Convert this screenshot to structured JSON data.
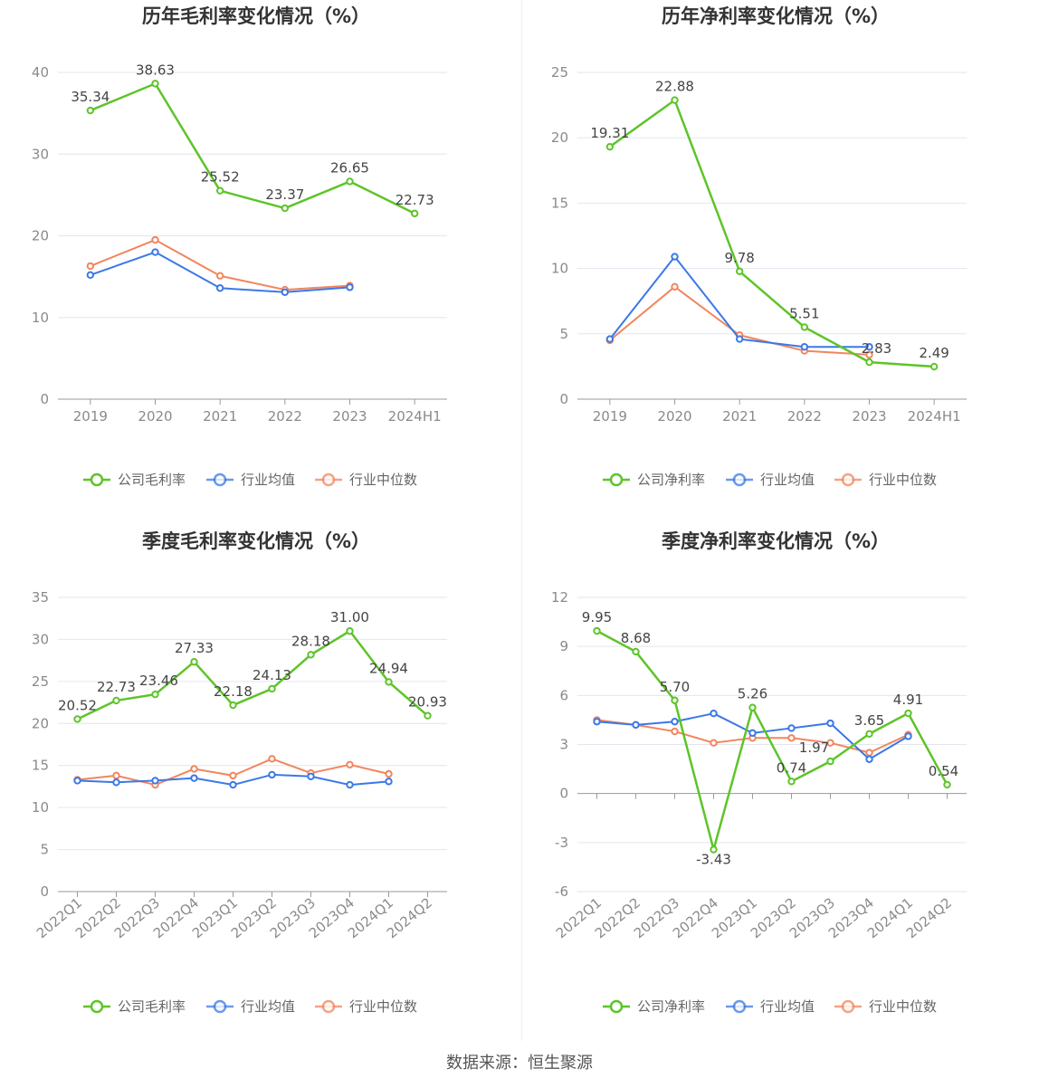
{
  "footer": {
    "source": "数据来源：恒生聚源"
  },
  "colors": {
    "company": "#5ec42a",
    "industry_avg": "#3b78e7",
    "industry_median": "#f2855e"
  },
  "chart_data": [
    {
      "id": "annual-gross",
      "type": "line",
      "title": "历年毛利率变化情况（%）",
      "categories": [
        "2019",
        "2020",
        "2021",
        "2022",
        "2023",
        "2024H1"
      ],
      "ylim": [
        0,
        40
      ],
      "yticks": [
        0,
        10,
        20,
        30,
        40
      ],
      "ytick_labels": [
        "0",
        "10",
        "20",
        "30",
        "40"
      ],
      "grid": true,
      "legend": "bottom",
      "rotate_x": false,
      "series": [
        {
          "name": "公司毛利率",
          "key": "company",
          "labels": true,
          "values": [
            35.34,
            38.63,
            25.52,
            23.37,
            26.65,
            22.73
          ],
          "value_labels": [
            "35.34",
            "38.63",
            "25.52",
            "23.37",
            "26.65",
            "22.73"
          ]
        },
        {
          "name": "行业均值",
          "key": "industry_avg",
          "labels": false,
          "values": [
            15.2,
            18.0,
            13.6,
            13.1,
            13.7,
            null
          ]
        },
        {
          "name": "行业中位数",
          "key": "industry_median",
          "labels": false,
          "values": [
            16.3,
            19.5,
            15.1,
            13.4,
            13.9,
            null
          ]
        }
      ]
    },
    {
      "id": "annual-net",
      "type": "line",
      "title": "历年净利率变化情况（%）",
      "categories": [
        "2019",
        "2020",
        "2021",
        "2022",
        "2023",
        "2024H1"
      ],
      "ylim": [
        0,
        25
      ],
      "yticks": [
        0,
        5,
        10,
        15,
        20,
        25
      ],
      "ytick_labels": [
        "0",
        "5",
        "10",
        "15",
        "20",
        "25"
      ],
      "grid": true,
      "legend": "bottom",
      "rotate_x": false,
      "series": [
        {
          "name": "公司净利率",
          "key": "company",
          "labels": true,
          "values": [
            19.31,
            22.88,
            9.78,
            5.51,
            2.83,
            2.49
          ],
          "value_labels": [
            "19.31",
            "22.88",
            "9.78",
            "5.51",
            "2.83",
            "2.49"
          ]
        },
        {
          "name": "行业均值",
          "key": "industry_avg",
          "labels": false,
          "values": [
            4.6,
            10.9,
            4.6,
            4.0,
            4.0,
            null
          ]
        },
        {
          "name": "行业中位数",
          "key": "industry_median",
          "labels": false,
          "values": [
            4.5,
            8.6,
            4.9,
            3.7,
            3.4,
            null
          ]
        }
      ]
    },
    {
      "id": "quarterly-gross",
      "type": "line",
      "title": "季度毛利率变化情况（%）",
      "categories": [
        "2022Q1",
        "2022Q2",
        "2022Q3",
        "2022Q4",
        "2023Q1",
        "2023Q2",
        "2023Q3",
        "2023Q4",
        "2024Q1",
        "2024Q2"
      ],
      "ylim": [
        0,
        35
      ],
      "yticks": [
        0,
        5,
        10,
        15,
        20,
        25,
        30,
        35
      ],
      "ytick_labels": [
        "0",
        "5",
        "10",
        "15",
        "20",
        "25",
        "30",
        "35"
      ],
      "grid": true,
      "legend": "bottom",
      "rotate_x": true,
      "series": [
        {
          "name": "公司毛利率",
          "key": "company",
          "labels": true,
          "values": [
            20.52,
            22.73,
            23.46,
            27.33,
            22.18,
            24.13,
            28.18,
            31.0,
            24.94,
            20.93
          ],
          "value_labels": [
            "20.52",
            "22.73",
            "23.46",
            "27.33",
            "22.18",
            "24.13",
            "28.18",
            "31.00",
            "24.94",
            "20.93"
          ]
        },
        {
          "name": "行业均值",
          "key": "industry_avg",
          "labels": false,
          "values": [
            13.2,
            13.0,
            13.2,
            13.5,
            12.7,
            13.9,
            13.7,
            12.7,
            13.1,
            null
          ]
        },
        {
          "name": "行业中位数",
          "key": "industry_median",
          "labels": false,
          "values": [
            13.3,
            13.8,
            12.7,
            14.6,
            13.8,
            15.8,
            14.1,
            15.1,
            14.0,
            null
          ]
        }
      ]
    },
    {
      "id": "quarterly-net",
      "type": "line",
      "title": "季度净利率变化情况（%）",
      "categories": [
        "2022Q1",
        "2022Q2",
        "2022Q3",
        "2022Q4",
        "2023Q1",
        "2023Q2",
        "2023Q3",
        "2023Q4",
        "2024Q1",
        "2024Q2"
      ],
      "ylim": [
        -6,
        12
      ],
      "yticks": [
        -6,
        -3,
        0,
        3,
        6,
        9,
        12
      ],
      "ytick_labels": [
        "-6",
        "-3",
        "0",
        "3",
        "6",
        "9",
        "12"
      ],
      "grid": true,
      "legend": "bottom",
      "rotate_x": true,
      "series": [
        {
          "name": "公司净利率",
          "key": "company",
          "labels": true,
          "values": [
            9.95,
            8.68,
            5.7,
            -3.43,
            5.26,
            0.74,
            1.97,
            3.65,
            4.91,
            0.54
          ],
          "value_labels": [
            "9.95",
            "8.68",
            "5.70",
            "-3.43",
            "5.26",
            "0.74",
            "1.97",
            "3.65",
            "4.91",
            "0.54"
          ]
        },
        {
          "name": "行业均值",
          "key": "industry_avg",
          "labels": false,
          "values": [
            4.4,
            4.2,
            4.4,
            4.9,
            3.7,
            4.0,
            4.3,
            2.1,
            3.5,
            null
          ]
        },
        {
          "name": "行业中位数",
          "key": "industry_median",
          "labels": false,
          "values": [
            4.5,
            4.2,
            3.8,
            3.1,
            3.4,
            3.4,
            3.1,
            2.5,
            3.6,
            null
          ]
        }
      ]
    }
  ]
}
